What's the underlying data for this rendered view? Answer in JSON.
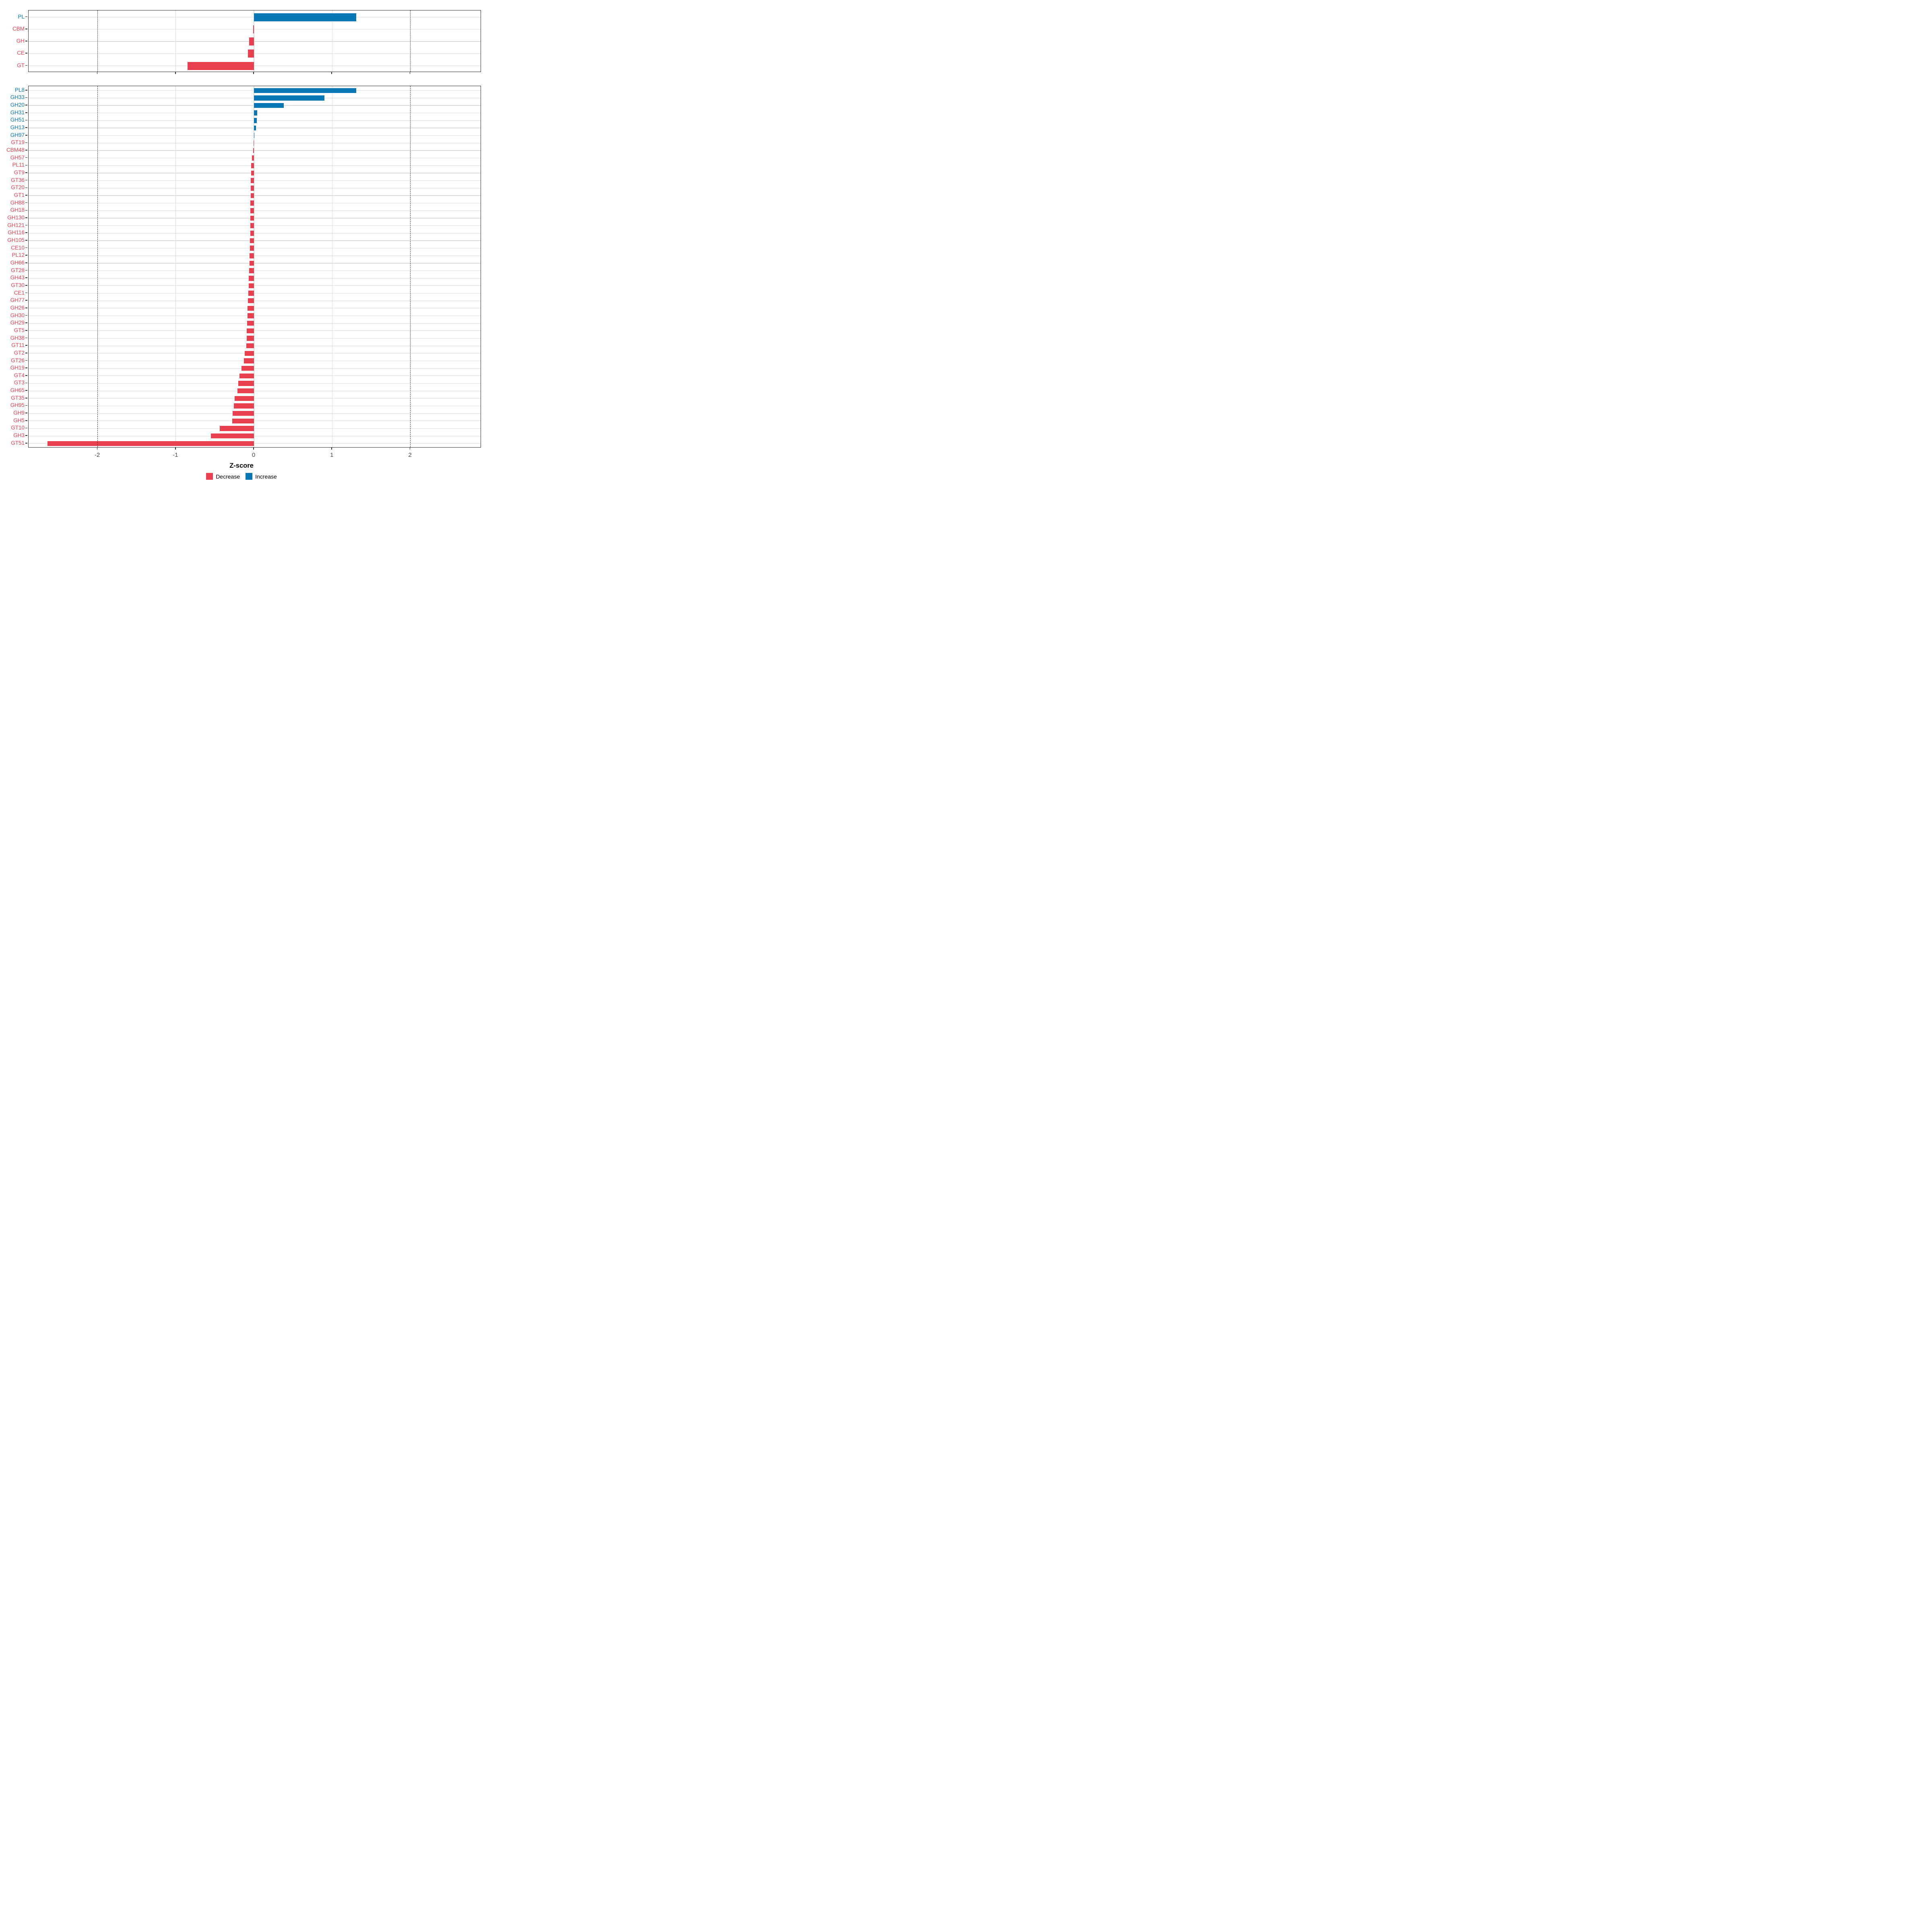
{
  "axis": {
    "label": "Z-score",
    "ticks": [
      "-2",
      "-1",
      "0",
      "1",
      "2"
    ],
    "gridline_values": [
      -2,
      -1,
      0,
      1,
      2
    ],
    "dashed_values": [
      -2,
      2
    ],
    "range": [
      -2.9,
      2.9
    ]
  },
  "legend": {
    "items": [
      {
        "label": "Decrease",
        "color": "#e8404e"
      },
      {
        "label": "Increase",
        "color": "#0877b5"
      }
    ]
  },
  "colors": {
    "increase": "#0877b5",
    "decrease": "#e8404e",
    "grid": "#dcdcdc",
    "dash": "#3f3f3f",
    "border": "#2f2f2f",
    "tick_text": "#4a4a4a"
  },
  "chart_data": [
    {
      "type": "bar",
      "orientation": "horizontal",
      "panel": "top",
      "title": "",
      "xlabel": "Z-score",
      "xlim": [
        -2.9,
        2.9
      ],
      "categories": [
        "PL",
        "CBM",
        "GH",
        "CE",
        "GT"
      ],
      "values": [
        1.31,
        -0.008,
        -0.063,
        -0.078,
        -0.85
      ]
    },
    {
      "type": "bar",
      "orientation": "horizontal",
      "panel": "bottom",
      "title": "",
      "xlabel": "Z-score",
      "xlim": [
        -2.9,
        2.9
      ],
      "categories": [
        "PL8",
        "GH33",
        "GH20",
        "GH31",
        "GH51",
        "GH13",
        "GH97",
        "GT19",
        "CBM48",
        "GH57",
        "PL11",
        "GT9",
        "GT36",
        "GT20",
        "GT1",
        "GH88",
        "GH18",
        "GH130",
        "GH121",
        "GH116",
        "GH105",
        "CE10",
        "PL12",
        "GH66",
        "GT28",
        "GH43",
        "GT30",
        "CE1",
        "GH77",
        "GH26",
        "GH30",
        "GH29",
        "GT5",
        "GH38",
        "GT11",
        "GT2",
        "GT26",
        "GH19",
        "GT4",
        "GT3",
        "GH65",
        "GT35",
        "GH95",
        "GH9",
        "GH5",
        "GT10",
        "GH3",
        "GT51"
      ],
      "values": [
        1.31,
        0.9,
        0.38,
        0.041,
        0.035,
        0.024,
        0.006,
        -0.003,
        -0.008,
        -0.024,
        -0.035,
        -0.038,
        -0.04,
        -0.042,
        -0.043,
        -0.044,
        -0.045,
        -0.046,
        -0.047,
        -0.048,
        -0.049,
        -0.05,
        -0.055,
        -0.058,
        -0.06,
        -0.065,
        -0.068,
        -0.07,
        -0.078,
        -0.08,
        -0.083,
        -0.086,
        -0.092,
        -0.094,
        -0.096,
        -0.118,
        -0.131,
        -0.16,
        -0.185,
        -0.2,
        -0.21,
        -0.245,
        -0.255,
        -0.275,
        -0.28,
        -0.44,
        -0.55,
        -2.64
      ]
    }
  ]
}
